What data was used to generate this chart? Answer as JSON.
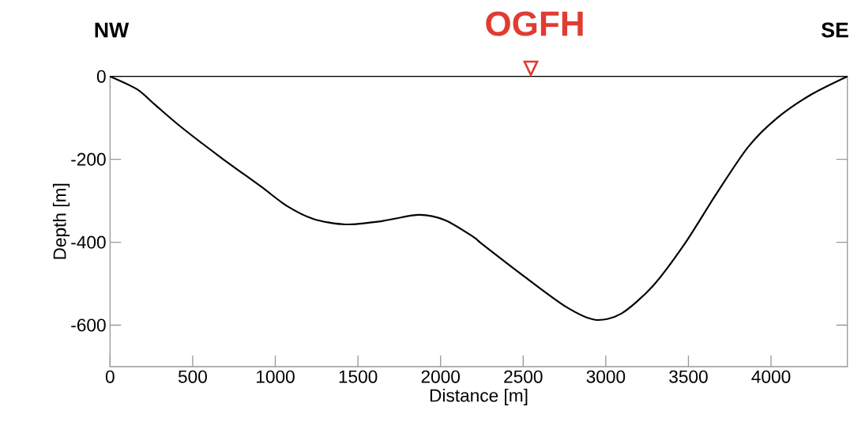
{
  "chart_data": {
    "type": "line",
    "xlabel": "Distance [m]",
    "ylabel": "Depth [m]",
    "x": [
      0,
      163,
      274,
      433,
      672,
      911,
      1072,
      1232,
      1422,
      1629,
      1868,
      2028,
      2202,
      2250,
      2521,
      2760,
      2935,
      3094,
      3286,
      3477,
      3668,
      3860,
      4035,
      4242,
      4462
    ],
    "values": [
      0,
      -31,
      -69,
      -123,
      -196,
      -265,
      -313,
      -344,
      -357,
      -350,
      -334,
      -347,
      -388,
      -404,
      -487,
      -556,
      -587,
      -572,
      -505,
      -404,
      -284,
      -171,
      -101,
      -44,
      0
    ],
    "color": "#000000",
    "xlim": [
      0,
      4462
    ],
    "ylim": [
      -700,
      0
    ],
    "xticks": [
      0,
      500,
      1000,
      1500,
      2000,
      2500,
      3000,
      3500,
      4000
    ],
    "yticks": [
      -600,
      -400,
      -200,
      0
    ],
    "grid": false,
    "marker": "none",
    "line_style": "solid",
    "annotations": [
      "NW",
      "SE",
      "OGFH"
    ]
  }
}
